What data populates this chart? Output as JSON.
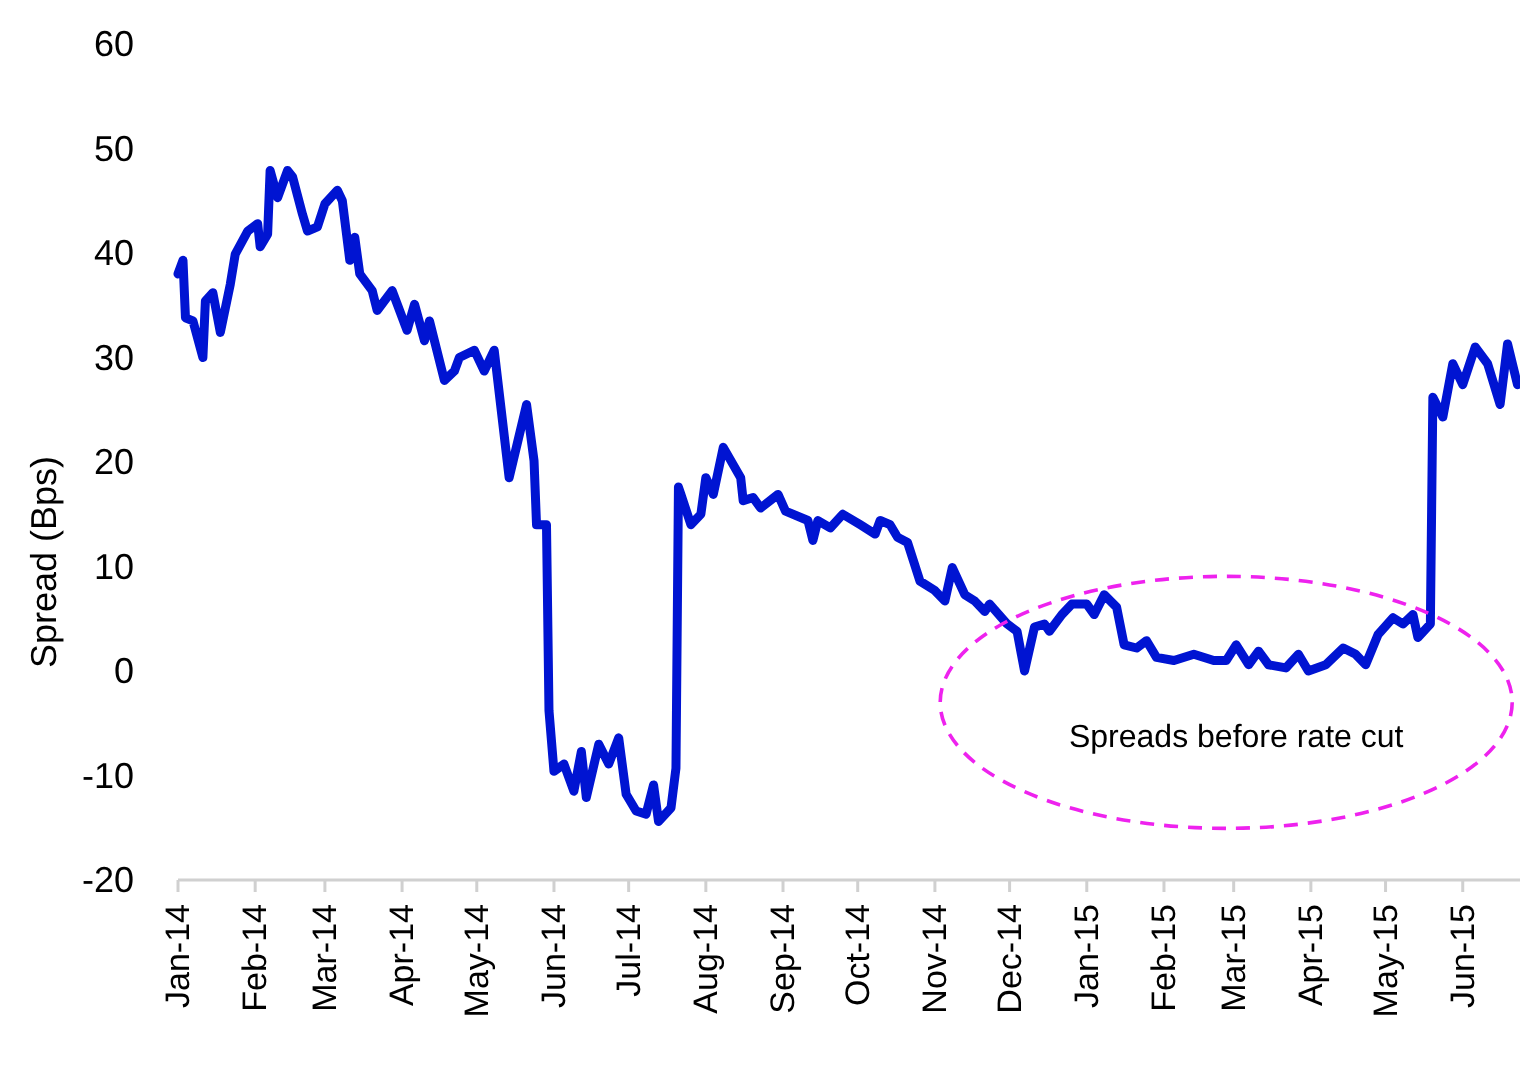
{
  "chart_data": {
    "type": "line",
    "ylabel": "Spread (Bps)",
    "xlim": [
      "2014-01-01",
      "2015-06-24"
    ],
    "ylim": [
      -20,
      60
    ],
    "yticks": [
      -20,
      -10,
      0,
      10,
      20,
      30,
      40,
      50,
      60
    ],
    "xticks": [
      {
        "value": "2014-01-01",
        "label": "Jan-14"
      },
      {
        "value": "2014-02-01",
        "label": "Feb-14"
      },
      {
        "value": "2014-03-01",
        "label": "Mar-14"
      },
      {
        "value": "2014-04-01",
        "label": "Apr-14"
      },
      {
        "value": "2014-05-01",
        "label": "May-14"
      },
      {
        "value": "2014-06-01",
        "label": "Jun-14"
      },
      {
        "value": "2014-07-01",
        "label": "Jul-14"
      },
      {
        "value": "2014-08-01",
        "label": "Aug-14"
      },
      {
        "value": "2014-09-01",
        "label": "Sep-14"
      },
      {
        "value": "2014-10-01",
        "label": "Oct-14"
      },
      {
        "value": "2014-11-01",
        "label": "Nov-14"
      },
      {
        "value": "2014-12-01",
        "label": "Dec-14"
      },
      {
        "value": "2015-01-01",
        "label": "Jan-15"
      },
      {
        "value": "2015-02-01",
        "label": "Feb-15"
      },
      {
        "value": "2015-03-01",
        "label": "Mar-15"
      },
      {
        "value": "2015-04-01",
        "label": "Apr-15"
      },
      {
        "value": "2015-05-01",
        "label": "May-15"
      },
      {
        "value": "2015-06-01",
        "label": "Jun-15"
      }
    ],
    "grid": false,
    "marker": "none",
    "line_style": "solid",
    "annotations": [
      "Spreads before rate cut"
    ],
    "series": [
      {
        "color": "#0014d2",
        "x": [
          "2014-01-01",
          "2014-01-03",
          "2014-01-04",
          "2014-01-07",
          "2014-01-11",
          "2014-01-12",
          "2014-01-15",
          "2014-01-18",
          "2014-01-22",
          "2014-01-24",
          "2014-01-29",
          "2014-02-02",
          "2014-02-03",
          "2014-02-06",
          "2014-02-07",
          "2014-02-10",
          "2014-02-14",
          "2014-02-16",
          "2014-02-20",
          "2014-02-22",
          "2014-02-26",
          "2014-03-01",
          "2014-03-06",
          "2014-03-08",
          "2014-03-11",
          "2014-03-13",
          "2014-03-15",
          "2014-03-20",
          "2014-03-22",
          "2014-03-28",
          "2014-04-03",
          "2014-04-06",
          "2014-04-10",
          "2014-04-12",
          "2014-04-18",
          "2014-04-22",
          "2014-04-24",
          "2014-04-30",
          "2014-05-04",
          "2014-05-08",
          "2014-05-14",
          "2014-05-21",
          "2014-05-24",
          "2014-05-25",
          "2014-05-29",
          "2014-05-30",
          "2014-06-01",
          "2014-06-05",
          "2014-06-09",
          "2014-06-12",
          "2014-06-14",
          "2014-06-19",
          "2014-06-23",
          "2014-06-27",
          "2014-06-30",
          "2014-07-04",
          "2014-07-08",
          "2014-07-11",
          "2014-07-13",
          "2014-07-18",
          "2014-07-20",
          "2014-07-21",
          "2014-07-22",
          "2014-07-26",
          "2014-07-30",
          "2014-08-01",
          "2014-08-04",
          "2014-08-08",
          "2014-08-15",
          "2014-08-16",
          "2014-08-20",
          "2014-08-23",
          "2014-08-30",
          "2014-09-02",
          "2014-09-11",
          "2014-09-13",
          "2014-09-15",
          "2014-09-20",
          "2014-09-25",
          "2014-10-02",
          "2014-10-08",
          "2014-10-10",
          "2014-10-14",
          "2014-10-17",
          "2014-10-21",
          "2014-10-26",
          "2014-11-01",
          "2014-11-05",
          "2014-11-08",
          "2014-11-13",
          "2014-11-17",
          "2014-11-21",
          "2014-11-23",
          "2014-11-30",
          "2014-12-04",
          "2014-12-07",
          "2014-12-11",
          "2014-12-15",
          "2014-12-17",
          "2014-12-22",
          "2014-12-26",
          "2015-01-01",
          "2015-01-04",
          "2015-01-08",
          "2015-01-13",
          "2015-01-16",
          "2015-01-21",
          "2015-01-25",
          "2015-01-29",
          "2015-02-05",
          "2015-02-13",
          "2015-02-21",
          "2015-02-26",
          "2015-03-02",
          "2015-03-07",
          "2015-03-11",
          "2015-03-15",
          "2015-03-22",
          "2015-03-27",
          "2015-03-31",
          "2015-04-07",
          "2015-04-14",
          "2015-04-19",
          "2015-04-23",
          "2015-04-28",
          "2015-05-04",
          "2015-05-08",
          "2015-05-12",
          "2015-05-14",
          "2015-05-19",
          "2015-05-20",
          "2015-05-24",
          "2015-05-28",
          "2015-06-01",
          "2015-06-06",
          "2015-06-11",
          "2015-06-16",
          "2015-06-19",
          "2015-06-23"
        ],
        "values": [
          38,
          39.3,
          33.8,
          33.5,
          30,
          35.4,
          36.2,
          32.4,
          37,
          39.9,
          42.1,
          42.8,
          40.6,
          41.8,
          47.9,
          45.3,
          47.9,
          47.3,
          43.7,
          42.1,
          42.5,
          44.7,
          46,
          45,
          39.3,
          41.5,
          38,
          36.4,
          34.5,
          36.4,
          32.6,
          35.1,
          31.6,
          33.5,
          27.8,
          28.7,
          30,
          30.7,
          28.7,
          30.7,
          18.5,
          25.5,
          20.1,
          14,
          14,
          -3.8,
          -9.6,
          -8.9,
          -11.5,
          -7.7,
          -12.1,
          -7,
          -8.9,
          -6.4,
          -11.8,
          -13.4,
          -13.7,
          -10.9,
          -14.4,
          -13.1,
          -9.3,
          17.6,
          16.9,
          14,
          15,
          18.5,
          16.9,
          21.4,
          18.5,
          16.3,
          16.6,
          15.6,
          16.9,
          15.3,
          14.4,
          12.5,
          14.4,
          13.7,
          15,
          14,
          13.1,
          14.4,
          14,
          12.8,
          12.3,
          8.6,
          7.7,
          6.7,
          9.9,
          7.3,
          6.7,
          5.7,
          6.4,
          4.5,
          3.8,
          0,
          4.2,
          4.5,
          3.8,
          5.4,
          6.4,
          6.4,
          5.4,
          7.3,
          6.1,
          2.5,
          2.2,
          2.9,
          1.3,
          1,
          1.6,
          1,
          1,
          2.5,
          0.6,
          1.9,
          0.6,
          0.3,
          1.6,
          0,
          0.6,
          2.2,
          1.6,
          0.6,
          3.5,
          5.1,
          4.5,
          5.4,
          3.2,
          4.5,
          26.2,
          24.3,
          29.4,
          27.4,
          31,
          29.4,
          25.5,
          31.3,
          27.4
        ]
      }
    ]
  }
}
